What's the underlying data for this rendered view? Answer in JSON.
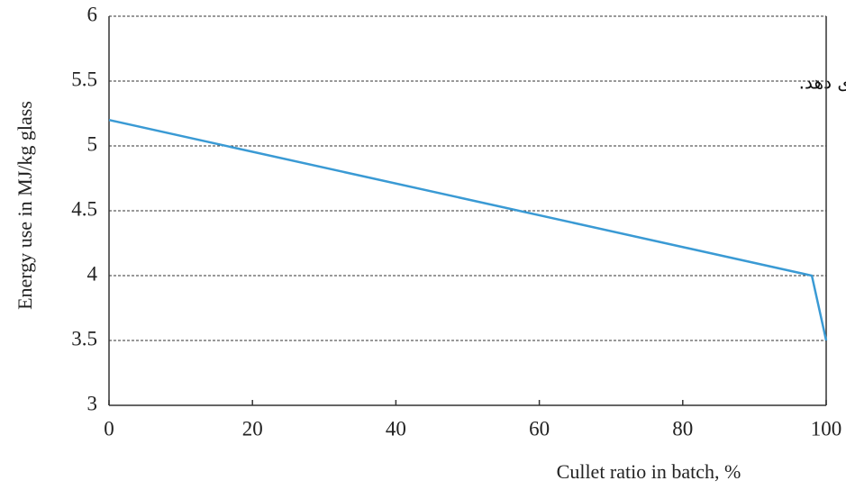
{
  "chart_data": {
    "type": "line",
    "xlabel": "Cullet ratio in batch, %",
    "ylabel": "Energy use in MJ/kg glass",
    "annotation": "ی دهد.",
    "x": [
      0,
      98,
      100
    ],
    "series": [
      {
        "color": "#3a9ad4",
        "values": [
          5.2,
          4.0,
          3.5
        ]
      }
    ],
    "xlim": [
      0,
      100
    ],
    "xticks": [
      0,
      20,
      40,
      60,
      80,
      100
    ],
    "ylim": [
      3,
      6
    ],
    "yticks": [
      3,
      3.5,
      4,
      4.5,
      5,
      5.5,
      6
    ],
    "grid": true
  }
}
